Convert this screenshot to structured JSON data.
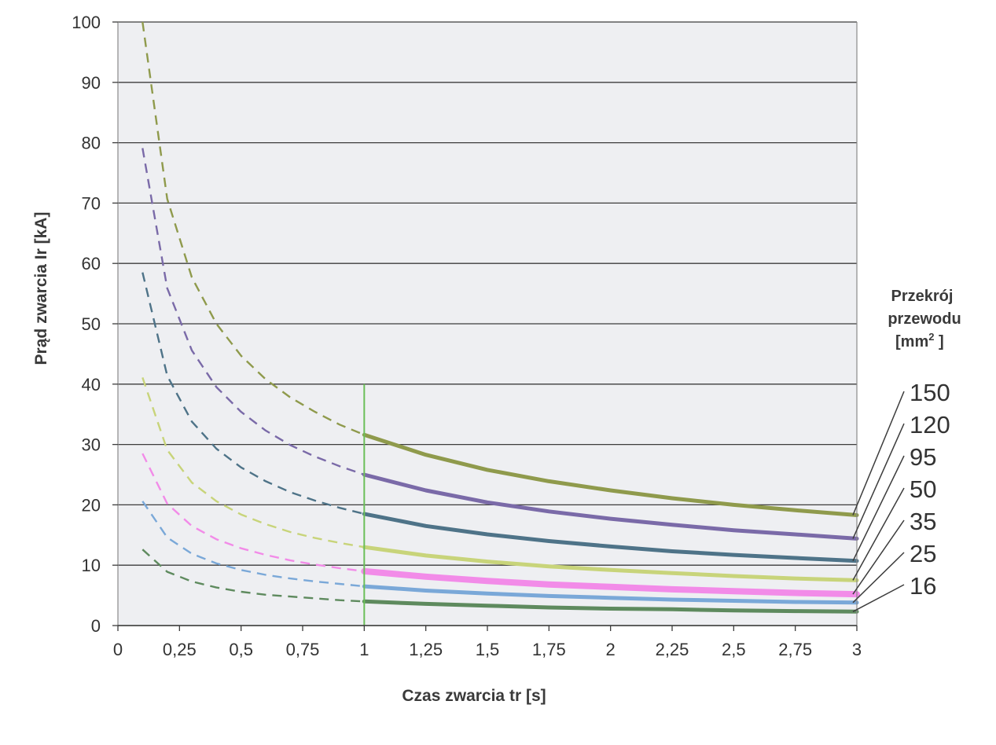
{
  "chart_data": {
    "type": "line",
    "xlabel": "Czas zwarcia tr [s]",
    "ylabel": "Prąd zwarcia Ir [kA]",
    "xlim": [
      0,
      3
    ],
    "ylim": [
      0,
      100
    ],
    "xticks": [
      {
        "value": 0,
        "label": "0"
      },
      {
        "value": 0.25,
        "label": "0,25"
      },
      {
        "value": 0.5,
        "label": "0,5"
      },
      {
        "value": 0.75,
        "label": "0,75"
      },
      {
        "value": 1,
        "label": "1"
      },
      {
        "value": 1.25,
        "label": "1,25"
      },
      {
        "value": 1.5,
        "label": "1,5"
      },
      {
        "value": 1.75,
        "label": "1,75"
      },
      {
        "value": 2,
        "label": "2"
      },
      {
        "value": 2.25,
        "label": "2,25"
      },
      {
        "value": 2.5,
        "label": "2,5"
      },
      {
        "value": 2.75,
        "label": "2,75"
      },
      {
        "value": 3,
        "label": "3"
      }
    ],
    "yticks": [
      0,
      10,
      20,
      30,
      40,
      50,
      60,
      70,
      80,
      90,
      100
    ],
    "grid": "horizontal",
    "background": "#eeeff2",
    "marker_line": {
      "x": 1,
      "y_top": 40,
      "color": "#6bbf59"
    },
    "legend": {
      "title_lines": [
        "Przekrój",
        "przewodu",
        "[mm",
        "2",
        " ]"
      ],
      "placement": "right"
    },
    "dashed_below_x": 1,
    "series": [
      {
        "name": "150",
        "color": "#8f9a4c",
        "width": 5,
        "x": [
          0.1,
          0.2,
          0.3,
          0.4,
          0.5,
          0.6,
          0.7,
          0.8,
          0.9,
          1,
          1.25,
          1.5,
          1.75,
          2,
          2.25,
          2.5,
          2.75,
          3
        ],
        "y": [
          100,
          70.7,
          57.7,
          50.0,
          44.7,
          40.8,
          37.8,
          35.4,
          33.3,
          31.6,
          28.3,
          25.8,
          23.9,
          22.4,
          21.1,
          20.0,
          19.1,
          18.3
        ]
      },
      {
        "name": "120",
        "color": "#7a6aa8",
        "width": 5,
        "x": [
          0.1,
          0.2,
          0.3,
          0.4,
          0.5,
          0.6,
          0.7,
          0.8,
          0.9,
          1,
          1.25,
          1.5,
          1.75,
          2,
          2.25,
          2.5,
          2.75,
          3
        ],
        "y": [
          79.1,
          55.9,
          45.6,
          39.5,
          35.4,
          32.3,
          29.9,
          28.0,
          26.4,
          25.0,
          22.4,
          20.4,
          18.9,
          17.7,
          16.7,
          15.8,
          15.1,
          14.4
        ]
      },
      {
        "name": "95",
        "color": "#4e7388",
        "width": 5,
        "x": [
          0.1,
          0.2,
          0.3,
          0.4,
          0.5,
          0.6,
          0.7,
          0.8,
          0.9,
          1,
          1.25,
          1.5,
          1.75,
          2,
          2.25,
          2.5,
          2.75,
          3
        ],
        "y": [
          58.5,
          41.4,
          33.8,
          29.3,
          26.2,
          23.9,
          22.1,
          20.7,
          19.5,
          18.5,
          16.5,
          15.1,
          14.0,
          13.1,
          12.3,
          11.7,
          11.2,
          10.7
        ]
      },
      {
        "name": "50",
        "color": "#c8d47a",
        "width": 5,
        "x": [
          0.1,
          0.2,
          0.3,
          0.4,
          0.5,
          0.6,
          0.7,
          0.8,
          0.9,
          1,
          1.25,
          1.5,
          1.75,
          2,
          2.25,
          2.5,
          2.75,
          3
        ],
        "y": [
          41.1,
          29.1,
          23.7,
          20.6,
          18.4,
          16.8,
          15.5,
          14.5,
          13.7,
          13.0,
          11.6,
          10.6,
          9.8,
          9.2,
          8.7,
          8.2,
          7.8,
          7.5
        ]
      },
      {
        "name": "35",
        "color": "#f28be8",
        "width": 8,
        "x": [
          0.1,
          0.2,
          0.3,
          0.4,
          0.5,
          0.6,
          0.7,
          0.8,
          0.9,
          1,
          1.25,
          1.5,
          1.75,
          2,
          2.25,
          2.5,
          2.75,
          3
        ],
        "y": [
          28.5,
          20.2,
          16.5,
          14.3,
          12.8,
          11.7,
          10.8,
          10.1,
          9.5,
          9.0,
          8.1,
          7.4,
          6.8,
          6.4,
          6.0,
          5.7,
          5.4,
          5.2
        ]
      },
      {
        "name": "25",
        "color": "#7aa8d8",
        "width": 5,
        "x": [
          0.1,
          0.2,
          0.3,
          0.4,
          0.5,
          0.6,
          0.7,
          0.8,
          0.9,
          1,
          1.25,
          1.5,
          1.75,
          2,
          2.25,
          2.5,
          2.75,
          3
        ],
        "y": [
          20.6,
          14.6,
          11.9,
          10.3,
          9.2,
          8.4,
          7.8,
          7.3,
          6.9,
          6.5,
          5.8,
          5.3,
          4.9,
          4.6,
          4.3,
          4.1,
          3.9,
          3.8
        ]
      },
      {
        "name": "16",
        "color": "#5e8a5e",
        "width": 5,
        "x": [
          0.1,
          0.2,
          0.3,
          0.4,
          0.5,
          0.6,
          0.7,
          0.8,
          0.9,
          1,
          1.25,
          1.5,
          1.75,
          2,
          2.25,
          2.5,
          2.75,
          3
        ],
        "y": [
          12.6,
          8.9,
          7.3,
          6.3,
          5.6,
          5.1,
          4.8,
          4.5,
          4.2,
          4.0,
          3.6,
          3.3,
          3.0,
          2.8,
          2.7,
          2.5,
          2.4,
          2.3
        ]
      }
    ]
  }
}
